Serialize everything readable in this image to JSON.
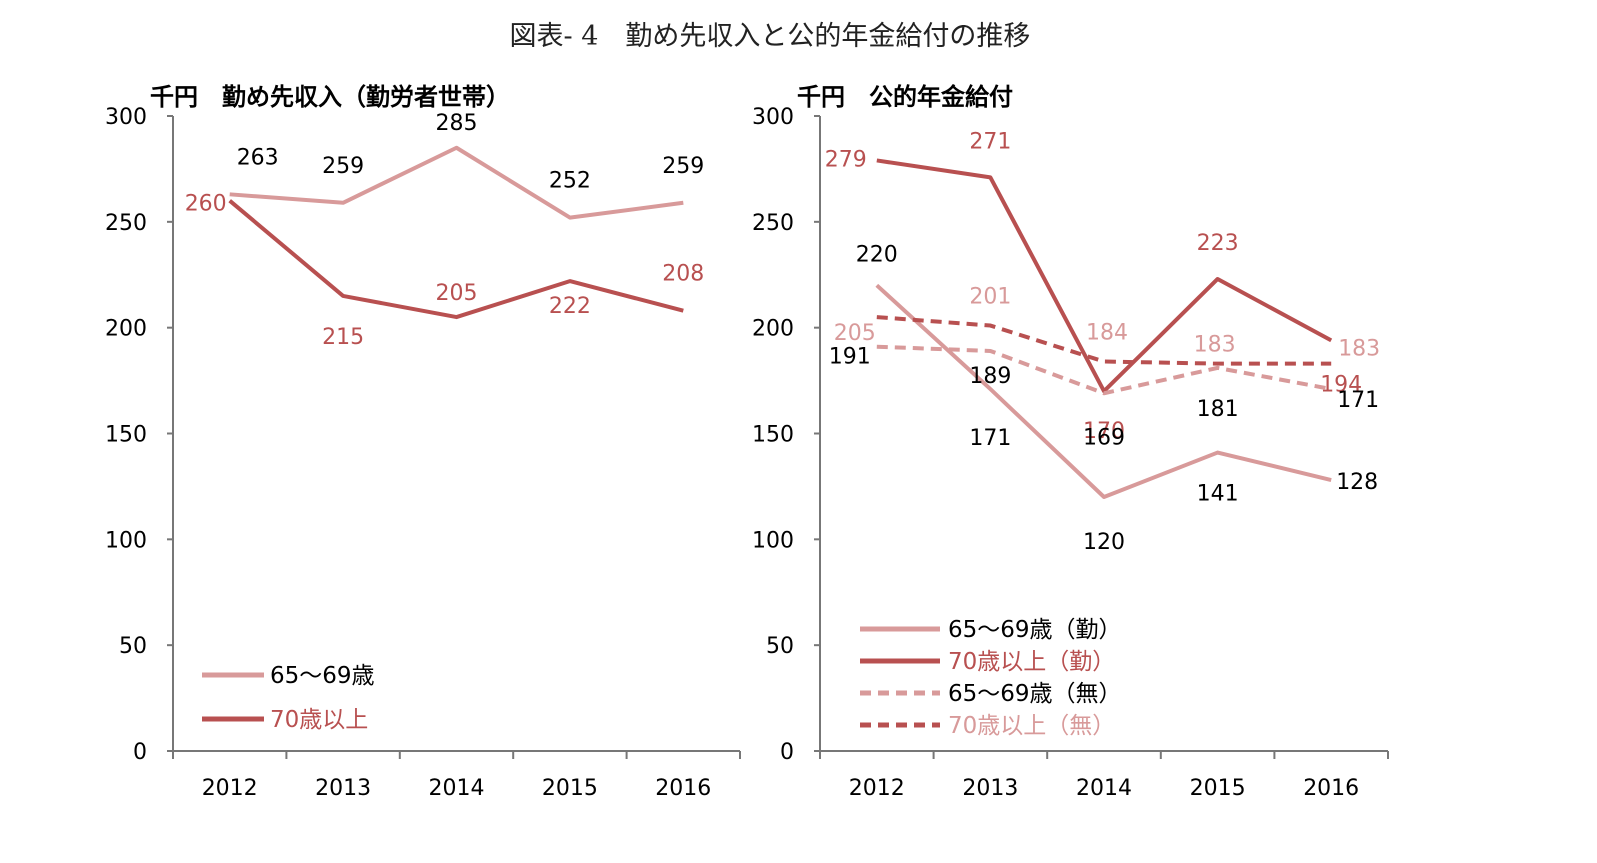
{
  "title": "図表- 4　勤め先収入と公的年金給付の推移",
  "colors": {
    "light": "#d89a9a",
    "dark": "#b85050",
    "black": "#000000"
  },
  "chart_data": [
    {
      "type": "line",
      "title": "千円　勤め先収入（勤労者世帯）",
      "categories": [
        "2012",
        "2013",
        "2014",
        "2015",
        "2016"
      ],
      "ylim": [
        0,
        300
      ],
      "yticks": [
        "0",
        "50",
        "100",
        "150",
        "200",
        "250",
        "300"
      ],
      "grid": false,
      "legend": "bottom-left",
      "series": [
        {
          "name": "65～69歳",
          "values": [
            263,
            259,
            285,
            252,
            259
          ],
          "color": "#d89a9a",
          "dash": false,
          "label_color": "#000000"
        },
        {
          "name": "70歳以上",
          "values": [
            260,
            215,
            205,
            222,
            208
          ],
          "color": "#b85050",
          "dash": false,
          "label_color": "#b85050"
        }
      ]
    },
    {
      "type": "line",
      "title": "千円　公的年金給付",
      "categories": [
        "2012",
        "2013",
        "2014",
        "2015",
        "2016"
      ],
      "ylim": [
        0,
        300
      ],
      "yticks": [
        "0",
        "50",
        "100",
        "150",
        "200",
        "250",
        "300"
      ],
      "grid": false,
      "legend": "bottom-left",
      "series": [
        {
          "name": "65～69歳（勤）",
          "values": [
            220,
            171,
            120,
            141,
            128
          ],
          "color": "#d89a9a",
          "dash": false,
          "label_color": "#000000"
        },
        {
          "name": "70歳以上（勤）",
          "values": [
            279,
            271,
            170,
            223,
            194
          ],
          "color": "#b85050",
          "dash": false,
          "label_color": "#b85050"
        },
        {
          "name": "65～69歳（無）",
          "values": [
            191,
            189,
            169,
            181,
            171
          ],
          "color": "#d89a9a",
          "dash": true,
          "label_color": "#000000"
        },
        {
          "name": "70歳以上（無）",
          "values": [
            205,
            201,
            184,
            183,
            183
          ],
          "color": "#b85050",
          "dash": true,
          "label_color": "#d89a9a"
        }
      ]
    }
  ]
}
